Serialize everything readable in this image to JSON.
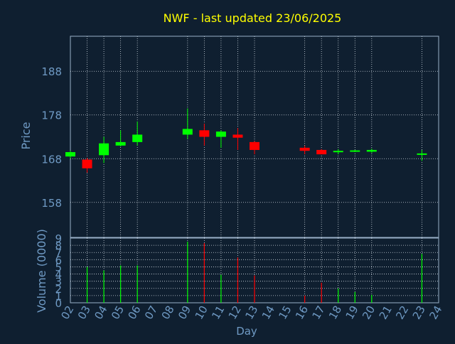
{
  "title": "NWF - last updated 23/06/2025",
  "colors": {
    "background": "#0f1f30",
    "frame": "#9ab0c8",
    "grid": "#cfd8e0",
    "title": "#ffff00",
    "text": "#6f9ac4",
    "up": "#00ff00",
    "down": "#ff0000"
  },
  "chart_data": [
    {
      "type": "candlestick",
      "ylabel": "Price",
      "ylim": [
        150,
        196
      ],
      "yticks": [
        158,
        168,
        178,
        188
      ],
      "grid": true,
      "x": [
        "02",
        "03",
        "04",
        "05",
        "06",
        "09",
        "10",
        "11",
        "12",
        "13",
        "16",
        "17",
        "18",
        "19",
        "20",
        "23"
      ],
      "ohlc": [
        {
          "day": "02",
          "open": 168.5,
          "high": 169.8,
          "low": 168.0,
          "close": 169.5
        },
        {
          "day": "03",
          "open": 167.8,
          "high": 168.2,
          "low": 164.8,
          "close": 165.8
        },
        {
          "day": "04",
          "open": 168.8,
          "high": 173.0,
          "low": 167.0,
          "close": 171.5
        },
        {
          "day": "05",
          "open": 171.0,
          "high": 174.5,
          "low": 170.8,
          "close": 171.8
        },
        {
          "day": "06",
          "open": 171.8,
          "high": 176.5,
          "low": 171.0,
          "close": 173.5
        },
        {
          "day": "09",
          "open": 173.5,
          "high": 179.5,
          "low": 172.5,
          "close": 174.8
        },
        {
          "day": "10",
          "open": 174.5,
          "high": 176.0,
          "low": 171.0,
          "close": 173.0
        },
        {
          "day": "11",
          "open": 173.0,
          "high": 174.5,
          "low": 170.5,
          "close": 174.2
        },
        {
          "day": "12",
          "open": 173.5,
          "high": 175.0,
          "low": 170.0,
          "close": 172.8
        },
        {
          "day": "13",
          "open": 171.8,
          "high": 172.0,
          "low": 169.0,
          "close": 170.0
        },
        {
          "day": "16",
          "open": 170.5,
          "high": 171.0,
          "low": 169.0,
          "close": 169.8
        },
        {
          "day": "17",
          "open": 170.0,
          "high": 170.2,
          "low": 169.0,
          "close": 169.0
        },
        {
          "day": "18",
          "open": 169.5,
          "high": 170.2,
          "low": 169.0,
          "close": 169.8
        },
        {
          "day": "19",
          "open": 169.7,
          "high": 170.0,
          "low": 169.5,
          "close": 169.9
        },
        {
          "day": "20",
          "open": 169.6,
          "high": 170.3,
          "low": 169.3,
          "close": 170.0
        },
        {
          "day": "23",
          "open": 169.0,
          "high": 170.0,
          "low": 167.5,
          "close": 169.2
        }
      ]
    },
    {
      "type": "bar",
      "xlabel": "Day",
      "ylabel": "Volume (0000)",
      "ylim": [
        0,
        9
      ],
      "yticks": [
        0,
        1,
        2,
        3,
        4,
        5,
        6,
        7,
        8,
        9
      ],
      "categories": [
        "02",
        "03",
        "04",
        "05",
        "06",
        "07",
        "08",
        "09",
        "10",
        "11",
        "12",
        "13",
        "14",
        "15",
        "16",
        "17",
        "18",
        "19",
        "20",
        "21",
        "22",
        "23",
        "24"
      ],
      "values": [
        0,
        5.0,
        4.5,
        5.2,
        5.2,
        0,
        0,
        8.5,
        8.3,
        3.9,
        6.3,
        3.8,
        0,
        0,
        1.0,
        2.8,
        2.0,
        1.5,
        1.1,
        0,
        0,
        6.8,
        0
      ],
      "bar_colors": [
        "up",
        "up",
        "up",
        "up",
        "up",
        "up",
        "up",
        "up",
        "down",
        "up",
        "down",
        "down",
        "up",
        "up",
        "down",
        "down",
        "up",
        "up",
        "up",
        "up",
        "up",
        "up",
        "up"
      ]
    }
  ]
}
